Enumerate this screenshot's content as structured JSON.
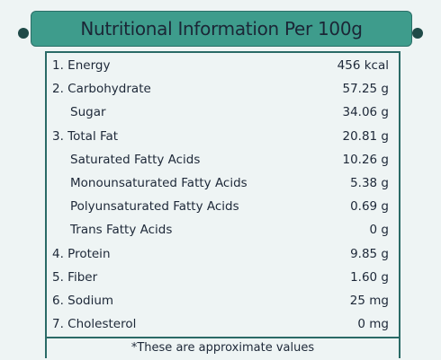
{
  "header": {
    "title": "Nutritional Information Per 100g"
  },
  "table": {
    "items": [
      {
        "label": "1. Energy",
        "value": "456 kcal"
      },
      {
        "label": "2. Carbohydrate",
        "value": "57.25 g",
        "components": [
          {
            "label": "Sugar",
            "value": "34.06 g"
          }
        ]
      },
      {
        "label": "3. Total Fat",
        "value": "20.81 g",
        "components": [
          {
            "label": "Saturated Fatty Acids",
            "value": "10.26 g"
          },
          {
            "label": "Monounsaturated Fatty Acids",
            "value": "5.38 g"
          },
          {
            "label": "Polyunsaturated Fatty Acids",
            "value": "0.69 g"
          },
          {
            "label": "Trans Fatty Acids",
            "value": "0 g"
          }
        ]
      },
      {
        "label": "4. Protein",
        "value": "9.85 g"
      },
      {
        "label": "5. Fiber",
        "value": "1.60 g"
      },
      {
        "label": "6. Sodium",
        "value": "25 mg"
      },
      {
        "label": "7. Cholesterol",
        "value": "0 mg"
      }
    ]
  },
  "footnote": "*These are approximate values"
}
